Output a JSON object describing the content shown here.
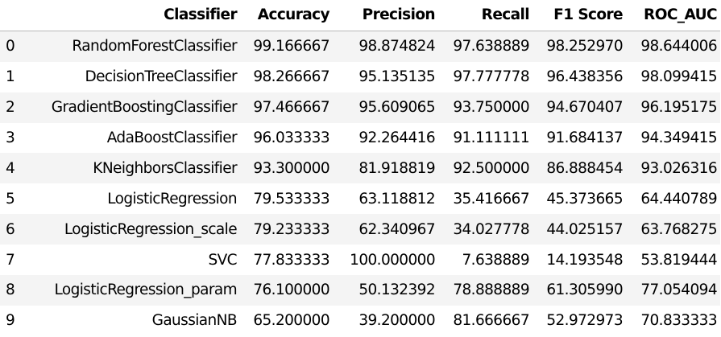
{
  "table": {
    "index_header": "",
    "columns": [
      "Classifier",
      "Accuracy",
      "Precision",
      "Recall",
      "F1 Score",
      "ROC_AUC"
    ],
    "rows": [
      {
        "index": "0",
        "classifier": "RandomForestClassifier",
        "accuracy": "99.166667",
        "precision": "98.874824",
        "recall": "97.638889",
        "f1": "98.252970",
        "roc_auc": "98.644006"
      },
      {
        "index": "1",
        "classifier": "DecisionTreeClassifier",
        "accuracy": "98.266667",
        "precision": "95.135135",
        "recall": "97.777778",
        "f1": "96.438356",
        "roc_auc": "98.099415"
      },
      {
        "index": "2",
        "classifier": "GradientBoostingClassifier",
        "accuracy": "97.466667",
        "precision": "95.609065",
        "recall": "93.750000",
        "f1": "94.670407",
        "roc_auc": "96.195175"
      },
      {
        "index": "3",
        "classifier": "AdaBoostClassifier",
        "accuracy": "96.033333",
        "precision": "92.264416",
        "recall": "91.111111",
        "f1": "91.684137",
        "roc_auc": "94.349415"
      },
      {
        "index": "4",
        "classifier": "KNeighborsClassifier",
        "accuracy": "93.300000",
        "precision": "81.918819",
        "recall": "92.500000",
        "f1": "86.888454",
        "roc_auc": "93.026316"
      },
      {
        "index": "5",
        "classifier": "LogisticRegression",
        "accuracy": "79.533333",
        "precision": "63.118812",
        "recall": "35.416667",
        "f1": "45.373665",
        "roc_auc": "64.440789"
      },
      {
        "index": "6",
        "classifier": "LogisticRegression_scale",
        "accuracy": "79.233333",
        "precision": "62.340967",
        "recall": "34.027778",
        "f1": "44.025157",
        "roc_auc": "63.768275"
      },
      {
        "index": "7",
        "classifier": "SVC",
        "accuracy": "77.833333",
        "precision": "100.000000",
        "recall": "7.638889",
        "f1": "14.193548",
        "roc_auc": "53.819444"
      },
      {
        "index": "8",
        "classifier": "LogisticRegression_param",
        "accuracy": "76.100000",
        "precision": "50.132392",
        "recall": "78.888889",
        "f1": "61.305990",
        "roc_auc": "77.054094"
      },
      {
        "index": "9",
        "classifier": "GaussianNB",
        "accuracy": "65.200000",
        "precision": "39.200000",
        "recall": "81.666667",
        "f1": "52.972973",
        "roc_auc": "70.833333"
      }
    ]
  },
  "colors": {
    "striped_row": "#f4f4f4",
    "plain_row": "#ffffff",
    "header_rule": "#b8b8b8",
    "text": "#000000"
  }
}
